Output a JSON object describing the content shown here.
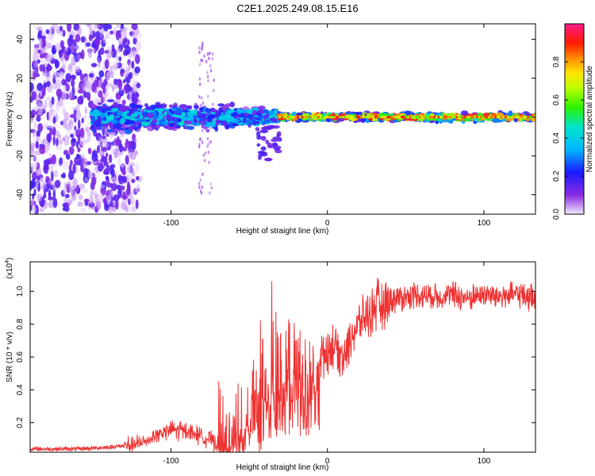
{
  "title": "C2E1.2025.249.08.15.E16",
  "colors": {
    "spectrum_low": "#8a2be2",
    "snr_line": "#ee3333",
    "axis": "#000000"
  },
  "chart_data": [
    {
      "type": "heatmap",
      "title": "C2E1.2025.249.08.15.E16",
      "xlabel": "Height of straight line (km)",
      "ylabel": "Frequency (Hz)",
      "xlim": [
        -190,
        133
      ],
      "ylim": [
        -50,
        48
      ],
      "xticks": [
        -100,
        0,
        100
      ],
      "xtick_labels": [
        "-100",
        "0",
        "100"
      ],
      "yticks": [
        -40,
        -20,
        0,
        20,
        40
      ],
      "ytick_labels": [
        "-40",
        "-20",
        "0",
        "20",
        "40"
      ],
      "colorbar": {
        "label": "Normalized spectral amplitude",
        "range": [
          0.0,
          1.0
        ],
        "ticks": [
          0.0,
          0.2,
          0.4,
          0.6,
          0.8
        ],
        "tick_labels": [
          "0.0",
          "0.2",
          "0.4",
          "0.6",
          "0.8"
        ],
        "colormap": "rainbow (violet → blue → cyan → green → yellow → red → magenta)"
      },
      "regions": [
        {
          "x_range": [
            -190,
            -120
          ],
          "description": "scattered broadband noise",
          "freq_spread_hz": 48,
          "amplitude": 0.1
        },
        {
          "x_range": [
            -150,
            -30
          ],
          "description": "band around 0 Hz",
          "freq_spread_hz": 10,
          "amplitude": 0.3
        },
        {
          "x_range": [
            -30,
            133
          ],
          "description": "narrow line at 0 Hz",
          "freq_spread_hz": 3,
          "amplitude": 0.8
        }
      ]
    },
    {
      "type": "line",
      "xlabel": "Height of straight line (km)",
      "ylabel": "SNR (10 * v/v)",
      "y_multiplier": "(x10",
      "y_multiplier_exp": "4",
      "y_multiplier_close": ")",
      "xlim": [
        -190,
        133
      ],
      "ylim": [
        0.02,
        1.18
      ],
      "xticks": [
        -100,
        0,
        100
      ],
      "xtick_labels": [
        "-100",
        "0",
        "100"
      ],
      "yticks": [
        0.2,
        0.4,
        0.6,
        0.8,
        1.0
      ],
      "ytick_labels": [
        "0.2",
        "0.4",
        "0.6",
        "0.8",
        "1.0"
      ],
      "series": [
        {
          "name": "SNR",
          "x": [
            -190,
            -160,
            -140,
            -120,
            -110,
            -100,
            -90,
            -80,
            -70,
            -65,
            -60,
            -55,
            -50,
            -45,
            -40,
            -35,
            -30,
            -25,
            -20,
            -15,
            -10,
            -5,
            0,
            5,
            10,
            15,
            20,
            25,
            30,
            35,
            40,
            50,
            60,
            70,
            80,
            90,
            100,
            110,
            120,
            133
          ],
          "values": [
            0.04,
            0.04,
            0.05,
            0.07,
            0.12,
            0.16,
            0.15,
            0.12,
            0.07,
            0.05,
            0.12,
            0.2,
            0.28,
            0.32,
            0.45,
            0.5,
            0.55,
            0.62,
            0.58,
            0.5,
            0.45,
            0.6,
            0.65,
            0.68,
            0.6,
            0.72,
            0.8,
            0.85,
            0.9,
            0.93,
            0.95,
            0.97,
            0.98,
            0.97,
            0.98,
            0.96,
            0.98,
            0.97,
            0.98,
            0.97
          ]
        }
      ]
    }
  ]
}
